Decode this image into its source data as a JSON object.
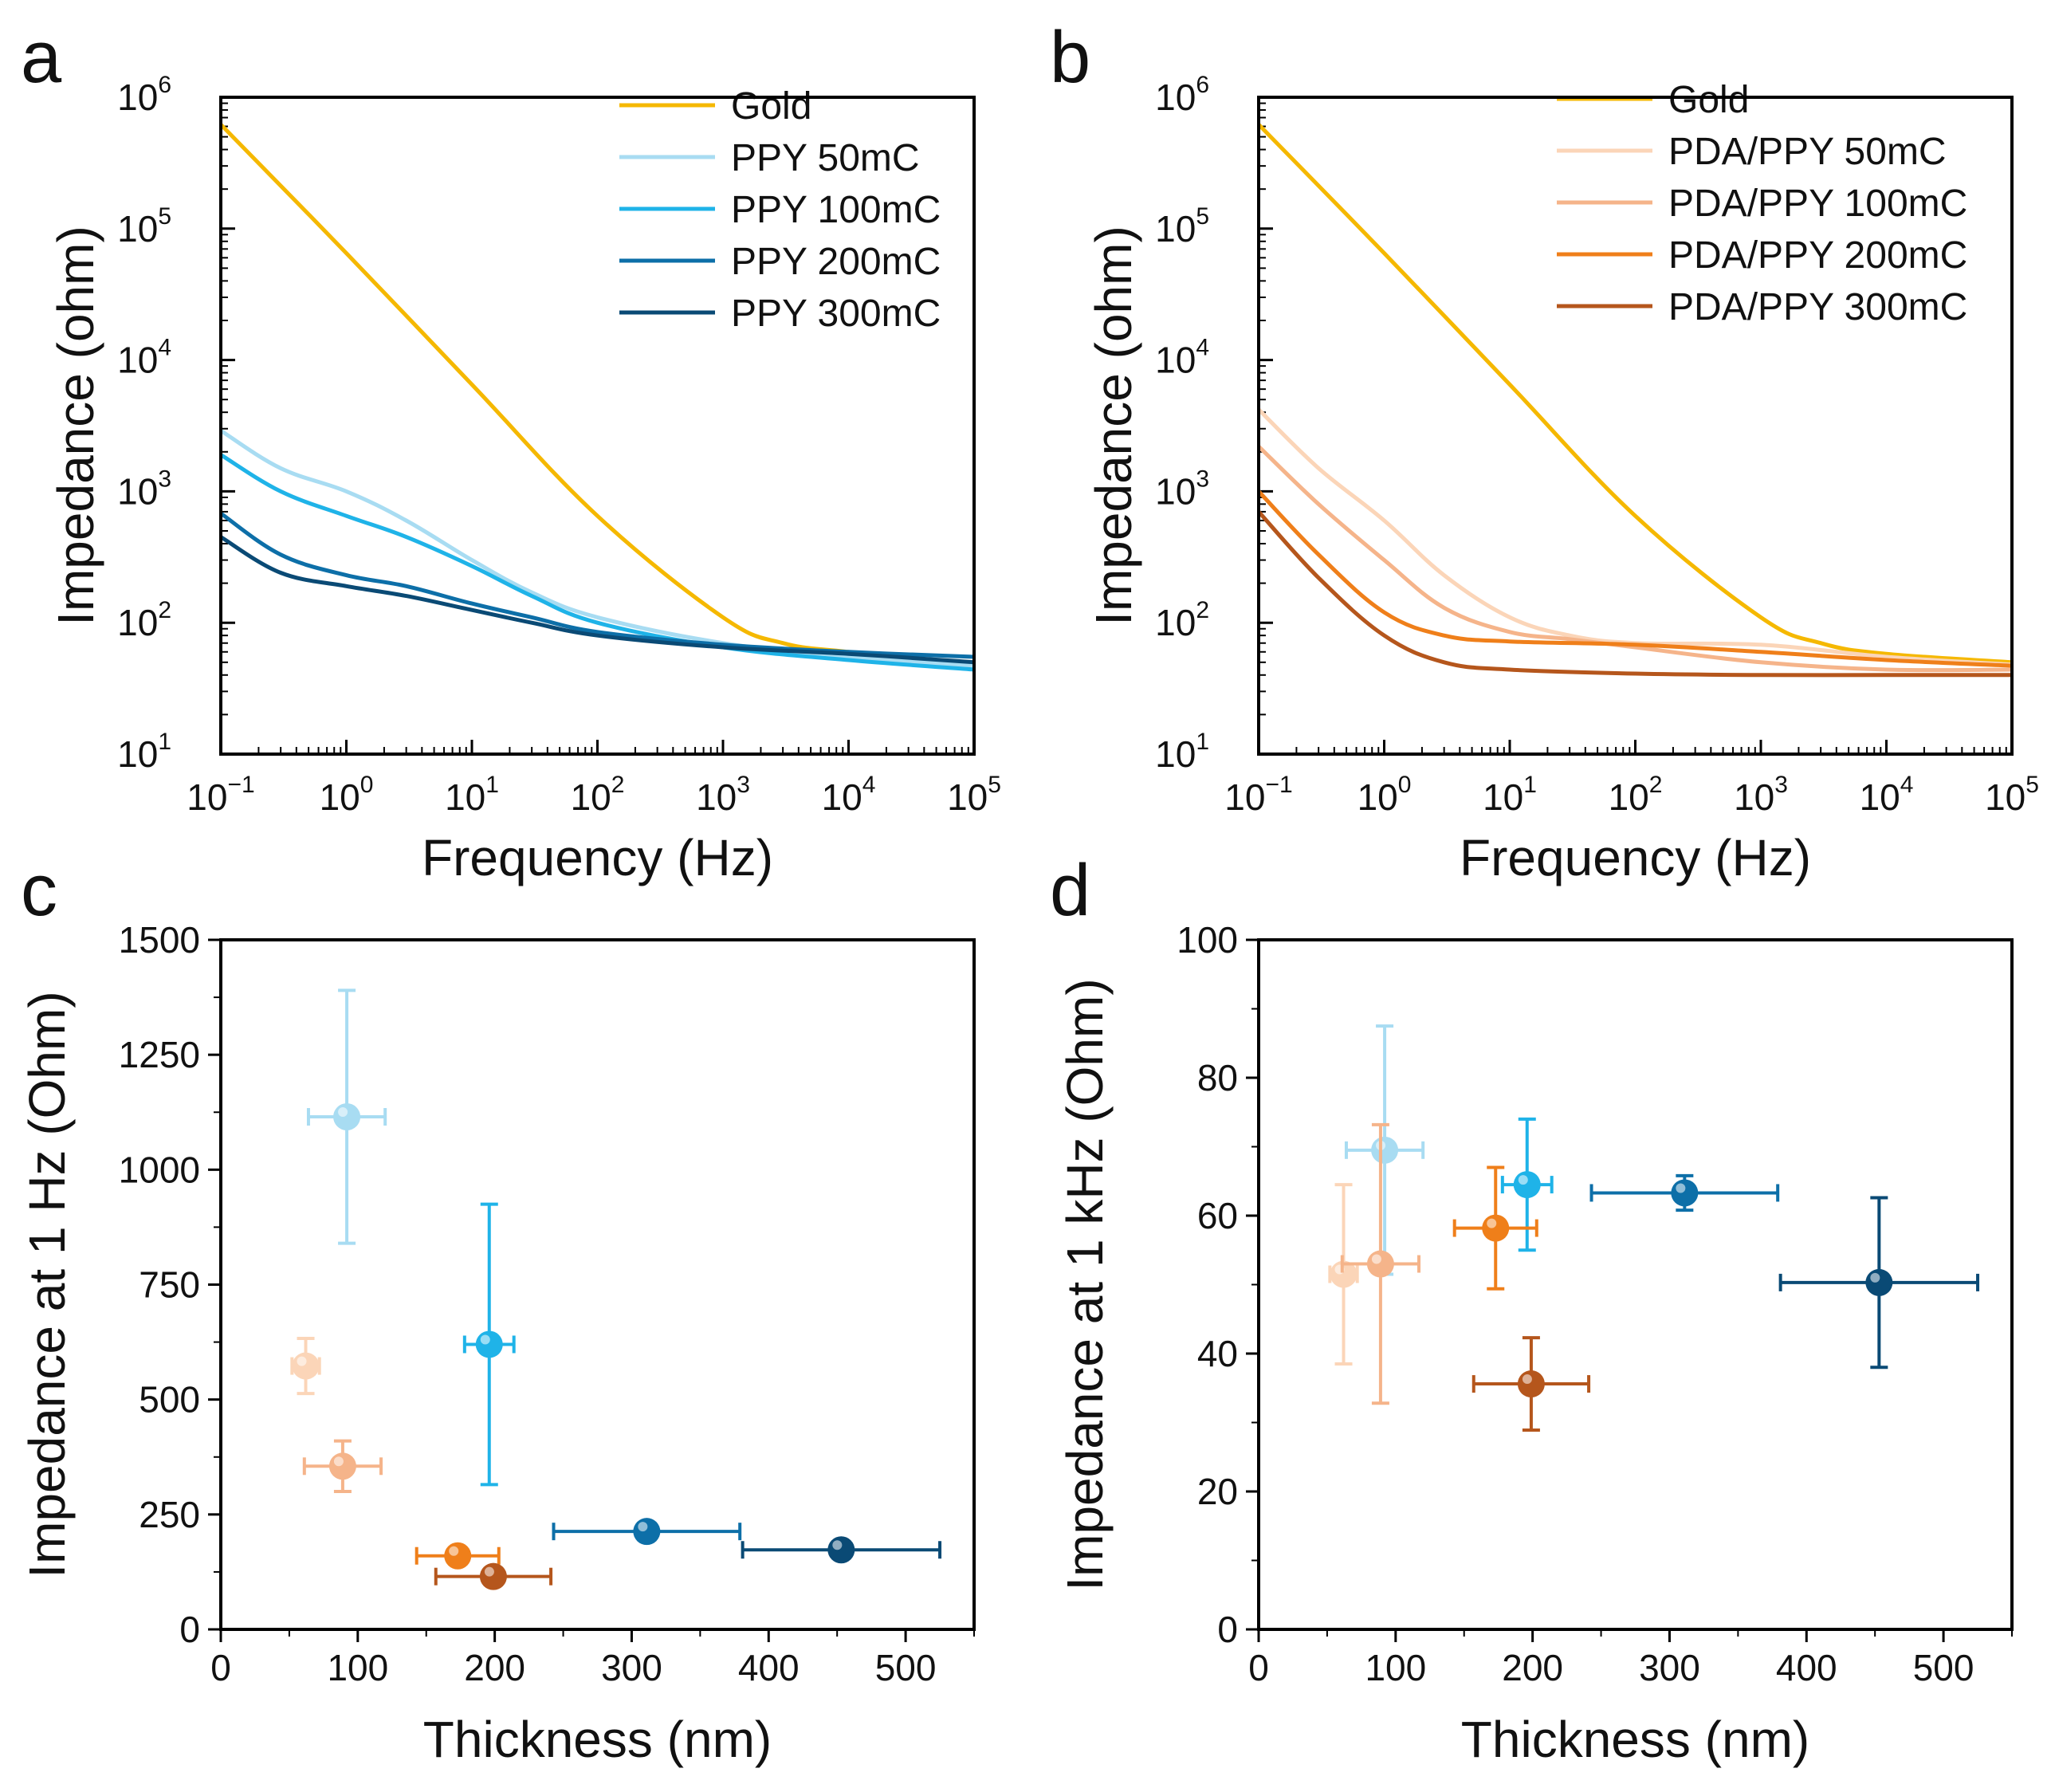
{
  "figure": {
    "panels": [
      "a",
      "b",
      "c",
      "d"
    ]
  },
  "chart_data": [
    {
      "id": "a",
      "type": "line",
      "panel_label": "a",
      "xlabel": "Frequency (Hz)",
      "ylabel": "Impedance (ohm)",
      "xscale": "log",
      "yscale": "log",
      "xlim": [
        0.1,
        100000
      ],
      "ylim": [
        10,
        1000000
      ],
      "xticks": [
        {
          "base": "10",
          "exp": "−1"
        },
        {
          "base": "10",
          "exp": "0"
        },
        {
          "base": "10",
          "exp": "1"
        },
        {
          "base": "10",
          "exp": "2"
        },
        {
          "base": "10",
          "exp": "3"
        },
        {
          "base": "10",
          "exp": "4"
        },
        {
          "base": "10",
          "exp": "5"
        }
      ],
      "yticks": [
        {
          "base": "10",
          "exp": "1"
        },
        {
          "base": "10",
          "exp": "2"
        },
        {
          "base": "10",
          "exp": "3"
        },
        {
          "base": "10",
          "exp": "4"
        },
        {
          "base": "10",
          "exp": "5"
        },
        {
          "base": "10",
          "exp": "6"
        }
      ],
      "legend_position": "top-right",
      "series": [
        {
          "name": "Gold",
          "color": "#f5b800",
          "points": [
            [
              0.1,
              620000
            ],
            [
              1,
              65000
            ],
            [
              10,
              6500
            ],
            [
              100,
              650
            ],
            [
              1000,
              110
            ],
            [
              3000,
              70
            ],
            [
              10000,
              60
            ],
            [
              100000,
              48
            ]
          ]
        },
        {
          "name": "PPY 50mC",
          "color": "#a8dcf2",
          "points": [
            [
              0.1,
              2900
            ],
            [
              0.3,
              1500
            ],
            [
              1,
              1000
            ],
            [
              3,
              600
            ],
            [
              10,
              300
            ],
            [
              30,
              170
            ],
            [
              100,
              110
            ],
            [
              1000,
              70
            ],
            [
              10000,
              55
            ],
            [
              100000,
              47
            ]
          ]
        },
        {
          "name": "PPY 100mC",
          "color": "#1fb3e8",
          "points": [
            [
              0.1,
              1900
            ],
            [
              0.3,
              1000
            ],
            [
              1,
              650
            ],
            [
              3,
              450
            ],
            [
              10,
              270
            ],
            [
              30,
              160
            ],
            [
              100,
              100
            ],
            [
              1000,
              65
            ],
            [
              10000,
              52
            ],
            [
              100000,
              44
            ]
          ]
        },
        {
          "name": "PPY 200mC",
          "color": "#0d6fa8",
          "points": [
            [
              0.1,
              680
            ],
            [
              0.3,
              330
            ],
            [
              1,
              230
            ],
            [
              3,
              190
            ],
            [
              10,
              140
            ],
            [
              30,
              110
            ],
            [
              100,
              85
            ],
            [
              1000,
              68
            ],
            [
              10000,
              60
            ],
            [
              100000,
              55
            ]
          ]
        },
        {
          "name": "PPY 300mC",
          "color": "#0a4a75",
          "points": [
            [
              0.1,
              450
            ],
            [
              0.3,
              240
            ],
            [
              1,
              190
            ],
            [
              3,
              160
            ],
            [
              10,
              125
            ],
            [
              30,
              100
            ],
            [
              100,
              80
            ],
            [
              1000,
              65
            ],
            [
              10000,
              58
            ],
            [
              100000,
              50
            ]
          ]
        }
      ]
    },
    {
      "id": "b",
      "type": "line",
      "panel_label": "b",
      "xlabel": "Frequency (Hz)",
      "ylabel": "Impedance (ohm)",
      "xscale": "log",
      "yscale": "log",
      "xlim": [
        0.1,
        100000
      ],
      "ylim": [
        10,
        1000000
      ],
      "xticks": [
        {
          "base": "10",
          "exp": "−1"
        },
        {
          "base": "10",
          "exp": "0"
        },
        {
          "base": "10",
          "exp": "1"
        },
        {
          "base": "10",
          "exp": "2"
        },
        {
          "base": "10",
          "exp": "3"
        },
        {
          "base": "10",
          "exp": "4"
        },
        {
          "base": "10",
          "exp": "5"
        }
      ],
      "yticks": [
        {
          "base": "10",
          "exp": "1"
        },
        {
          "base": "10",
          "exp": "2"
        },
        {
          "base": "10",
          "exp": "3"
        },
        {
          "base": "10",
          "exp": "4"
        },
        {
          "base": "10",
          "exp": "5"
        },
        {
          "base": "10",
          "exp": "6"
        }
      ],
      "legend_position": "top-right",
      "series": [
        {
          "name": "Gold",
          "color": "#f5b800",
          "points": [
            [
              0.1,
              620000
            ],
            [
              1,
              65000
            ],
            [
              10,
              6500
            ],
            [
              100,
              650
            ],
            [
              1000,
              110
            ],
            [
              3000,
              70
            ],
            [
              10000,
              58
            ],
            [
              100000,
              50
            ]
          ]
        },
        {
          "name": "PDA/PPY 50mC",
          "color": "#fbd5b8",
          "points": [
            [
              0.1,
              4200
            ],
            [
              0.3,
              1500
            ],
            [
              1,
              600
            ],
            [
              3,
              230
            ],
            [
              10,
              110
            ],
            [
              30,
              80
            ],
            [
              100,
              70
            ],
            [
              1000,
              68
            ],
            [
              10000,
              55
            ],
            [
              100000,
              48
            ]
          ]
        },
        {
          "name": "PDA/PPY 100mC",
          "color": "#f5b48a",
          "points": [
            [
              0.1,
              2200
            ],
            [
              0.3,
              800
            ],
            [
              1,
              300
            ],
            [
              3,
              130
            ],
            [
              10,
              85
            ],
            [
              30,
              75
            ],
            [
              100,
              65
            ],
            [
              1000,
              50
            ],
            [
              10000,
              44
            ],
            [
              100000,
              44
            ]
          ]
        },
        {
          "name": "PDA/PPY 200mC",
          "color": "#ef7f1a",
          "points": [
            [
              0.1,
              1000
            ],
            [
              0.3,
              330
            ],
            [
              1,
              120
            ],
            [
              3,
              80
            ],
            [
              10,
              72
            ],
            [
              100,
              68
            ],
            [
              1000,
              60
            ],
            [
              10000,
              52
            ],
            [
              100000,
              47
            ]
          ]
        },
        {
          "name": "PDA/PPY 300mC",
          "color": "#b5561c",
          "points": [
            [
              0.1,
              700
            ],
            [
              0.3,
              220
            ],
            [
              1,
              80
            ],
            [
              3,
              50
            ],
            [
              10,
              44
            ],
            [
              100,
              41
            ],
            [
              1000,
              40
            ],
            [
              10000,
              40
            ],
            [
              100000,
              40
            ]
          ]
        }
      ]
    },
    {
      "id": "c",
      "type": "scatter",
      "panel_label": "c",
      "xlabel": "Thickness (nm)",
      "ylabel": "Impedance at 1 Hz (Ohm)",
      "xlim": [
        0,
        550
      ],
      "ylim": [
        0,
        1500
      ],
      "xticks": [
        "0",
        "100",
        "200",
        "300",
        "400",
        "500"
      ],
      "xtick_values": [
        0,
        100,
        200,
        300,
        400,
        500
      ],
      "yticks": [
        "0",
        "250",
        "500",
        "750",
        "1000",
        "1250",
        "1500"
      ],
      "ytick_values": [
        0,
        250,
        500,
        750,
        1000,
        1250,
        1500
      ],
      "points": [
        {
          "series": "PPY 50mC",
          "color": "#a8dcf2",
          "x": 92,
          "y": 1115,
          "xerr": 28,
          "yerr": 275
        },
        {
          "series": "PPY 100mC",
          "color": "#1fb3e8",
          "x": 196,
          "y": 620,
          "xerr": 18,
          "yerr": 305
        },
        {
          "series": "PPY 200mC",
          "color": "#0d6fa8",
          "x": 311,
          "y": 213,
          "xerr": 68,
          "yerr": 12
        },
        {
          "series": "PPY 300mC",
          "color": "#0a4a75",
          "x": 453,
          "y": 173,
          "xerr": 72,
          "yerr": 10
        },
        {
          "series": "PDA/PPY 50mC",
          "color": "#fbd5b8",
          "x": 62,
          "y": 573,
          "xerr": 10,
          "yerr": 60
        },
        {
          "series": "PDA/PPY 100mC",
          "color": "#f5b48a",
          "x": 89,
          "y": 355,
          "xerr": 28,
          "yerr": 55
        },
        {
          "series": "PDA/PPY 200mC",
          "color": "#ef7f1a",
          "x": 173,
          "y": 160,
          "xerr": 30,
          "yerr": 12
        },
        {
          "series": "PDA/PPY 300mC",
          "color": "#b5561c",
          "x": 199,
          "y": 115,
          "xerr": 42,
          "yerr": 12
        }
      ]
    },
    {
      "id": "d",
      "type": "scatter",
      "panel_label": "d",
      "xlabel": "Thickness (nm)",
      "ylabel": "Impedance at 1 kHz (Ohm)",
      "xlim": [
        0,
        550
      ],
      "ylim": [
        0,
        100
      ],
      "xticks": [
        "0",
        "100",
        "200",
        "300",
        "400",
        "500"
      ],
      "xtick_values": [
        0,
        100,
        200,
        300,
        400,
        500
      ],
      "yticks": [
        "0",
        "20",
        "40",
        "60",
        "80",
        "100"
      ],
      "ytick_values": [
        0,
        20,
        40,
        60,
        80,
        100
      ],
      "points": [
        {
          "series": "PPY 50mC",
          "color": "#a8dcf2",
          "x": 92,
          "y": 69.5,
          "xerr": 28,
          "yerr": 18
        },
        {
          "series": "PPY 100mC",
          "color": "#1fb3e8",
          "x": 196,
          "y": 64.5,
          "xerr": 18,
          "yerr": 9.5
        },
        {
          "series": "PPY 200mC",
          "color": "#0d6fa8",
          "x": 311,
          "y": 63.3,
          "xerr": 68,
          "yerr": 2.5
        },
        {
          "series": "PPY 300mC",
          "color": "#0a4a75",
          "x": 453,
          "y": 50.3,
          "xerr": 72,
          "yerr": 12.3
        },
        {
          "series": "PDA/PPY 50mC",
          "color": "#fbd5b8",
          "x": 62,
          "y": 51.5,
          "xerr": 10,
          "yerr": 13
        },
        {
          "series": "PDA/PPY 100mC",
          "color": "#f5b48a",
          "x": 89,
          "y": 53,
          "xerr": 28,
          "yerr": 20.2
        },
        {
          "series": "PDA/PPY 200mC",
          "color": "#ef7f1a",
          "x": 173,
          "y": 58.2,
          "xerr": 30,
          "yerr": 8.8
        },
        {
          "series": "PDA/PPY 300mC",
          "color": "#b5561c",
          "x": 199,
          "y": 35.6,
          "xerr": 42,
          "yerr": 6.7
        }
      ]
    }
  ]
}
